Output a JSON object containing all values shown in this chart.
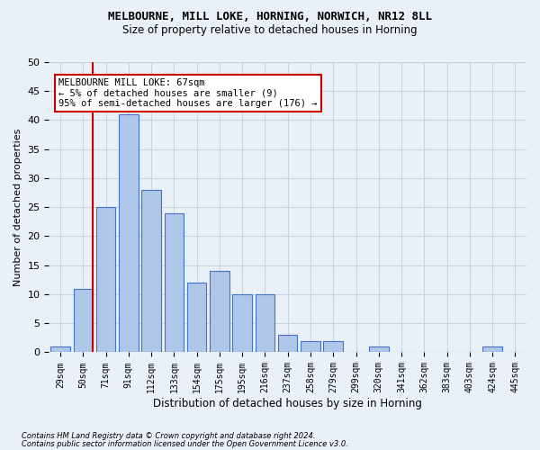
{
  "title1": "MELBOURNE, MILL LOKE, HORNING, NORWICH, NR12 8LL",
  "title2": "Size of property relative to detached houses in Horning",
  "xlabel": "Distribution of detached houses by size in Horning",
  "ylabel": "Number of detached properties",
  "bar_color": "#aec6e8",
  "bar_edge_color": "#4472c4",
  "categories": [
    "29sqm",
    "50sqm",
    "71sqm",
    "91sqm",
    "112sqm",
    "133sqm",
    "154sqm",
    "175sqm",
    "195sqm",
    "216sqm",
    "237sqm",
    "258sqm",
    "279sqm",
    "299sqm",
    "320sqm",
    "341sqm",
    "362sqm",
    "383sqm",
    "403sqm",
    "424sqm",
    "445sqm"
  ],
  "values": [
    1,
    11,
    25,
    41,
    28,
    24,
    12,
    14,
    10,
    10,
    3,
    2,
    2,
    0,
    1,
    0,
    0,
    0,
    0,
    1,
    0
  ],
  "annotation_line1": "MELBOURNE MILL LOKE: 67sqm",
  "annotation_line2": "← 5% of detached houses are smaller (9)",
  "annotation_line3": "95% of semi-detached houses are larger (176) →",
  "vline_color": "#cc0000",
  "annotation_box_color": "#ffffff",
  "annotation_box_edge": "#cc0000",
  "ylim": [
    0,
    50
  ],
  "yticks": [
    0,
    5,
    10,
    15,
    20,
    25,
    30,
    35,
    40,
    45,
    50
  ],
  "grid_color": "#c8d4e0",
  "bg_color": "#eaf0f8",
  "footer1": "Contains HM Land Registry data © Crown copyright and database right 2024.",
  "footer2": "Contains public sector information licensed under the Open Government Licence v3.0."
}
